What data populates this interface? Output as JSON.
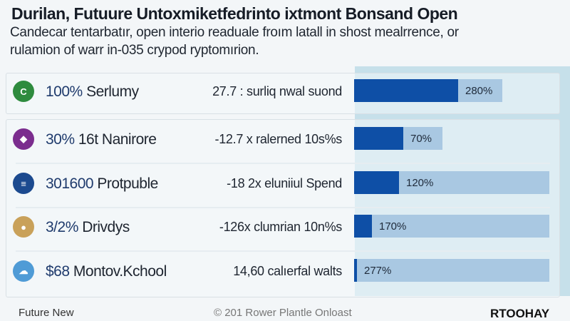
{
  "header": {
    "title": "Durilan, Futuure Untoxmiketfedrinto ixtmont Bonsand Open",
    "subtitle_line1": "Candecar tentarbatır, open interio readuale froım latall in shost mealrrence, or",
    "subtitle_line2": "rulamion of warr in-035 crypod ryptomırion."
  },
  "rows": [
    {
      "icon": "green-coin-icon",
      "icon_glyph": "C",
      "color": "#2e8b3e",
      "value": "100%",
      "label": "Serlumy",
      "desc": "27.7 : surliq nwal suond",
      "pct_label": "280%",
      "fill": 0.7,
      "track": 1.0
    },
    {
      "icon": "purple-badge-icon",
      "icon_glyph": "◆",
      "color": "#7b2d8e",
      "value": "30%",
      "label": "16t Nanirore",
      "desc": "-12.7 x ralerned 10s%s",
      "pct_label": "70%",
      "fill": 0.56,
      "track": 1.0
    },
    {
      "icon": "blue-seal-icon",
      "icon_glyph": "≡",
      "color": "#1c4a8f",
      "value": "301600",
      "label": "Protpuble",
      "desc": "-18 2x eluniiul Spend",
      "pct_label": "120%",
      "fill": 0.23,
      "track": 1.0
    },
    {
      "icon": "red-shield-icon",
      "icon_glyph": "●",
      "color": "#c9a15a",
      "value": "3/2%",
      "label": "Drivdys",
      "desc": "-126x clumrian 10n%s",
      "pct_label": "170%",
      "fill": 0.09,
      "track": 1.0
    },
    {
      "icon": "landscape-icon",
      "icon_glyph": "☁",
      "color": "#4f9bd6",
      "value": "$68",
      "label": "Montov.Kchool",
      "desc": "14,60 calıerfal walts",
      "pct_label": "277%",
      "fill": 0.015,
      "track": 1.0
    }
  ],
  "footer": {
    "left": "Future New",
    "center": "© 201 Rower Plantle Onloast",
    "brand": "RTOOHAY"
  }
}
